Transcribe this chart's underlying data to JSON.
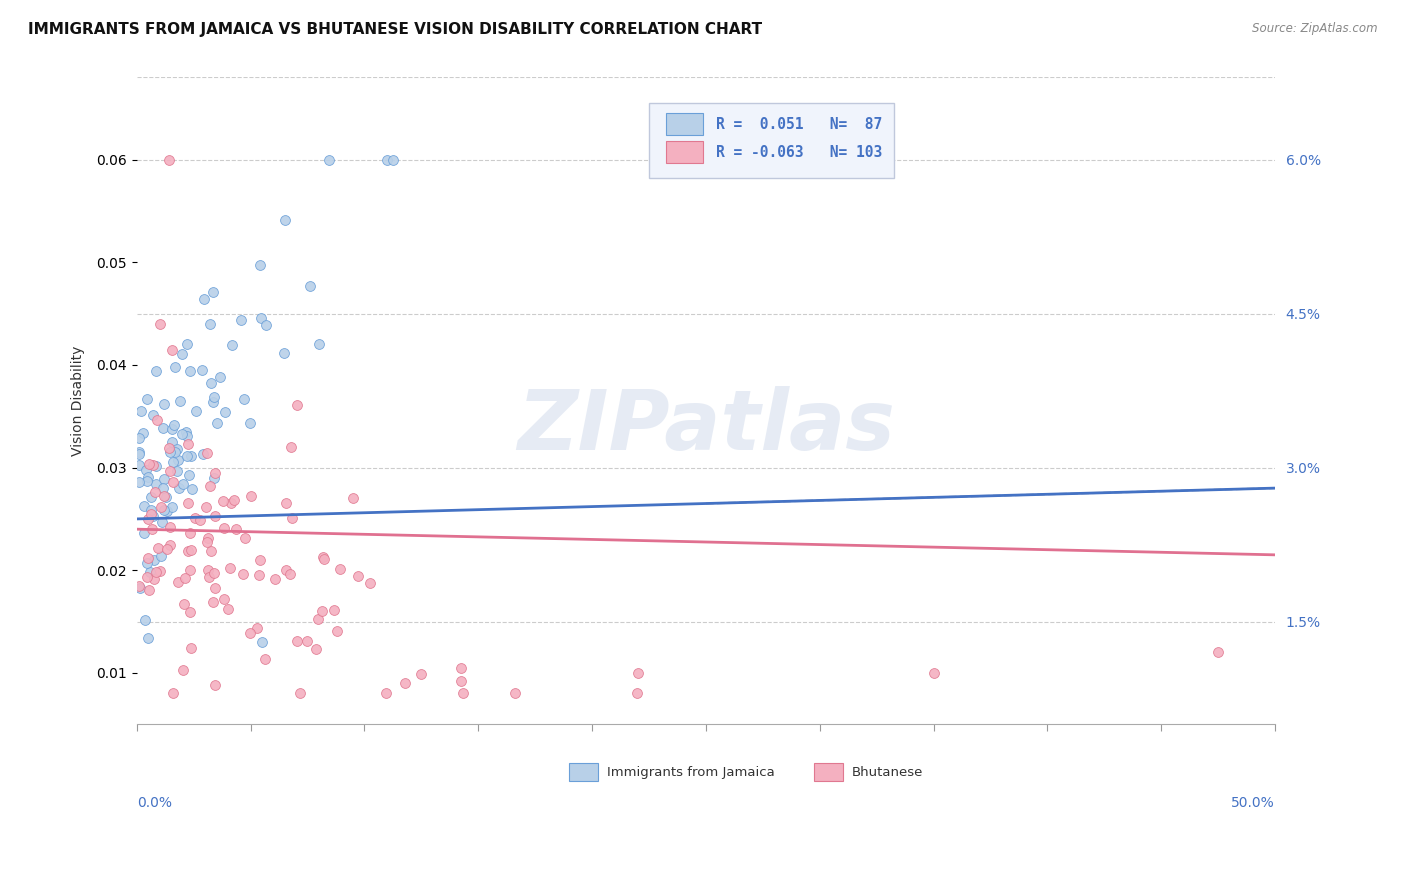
{
  "title": "IMMIGRANTS FROM JAMAICA VS BHUTANESE VISION DISABILITY CORRELATION CHART",
  "source": "Source: ZipAtlas.com",
  "ylabel": "Vision Disability",
  "yticks": [
    "1.5%",
    "3.0%",
    "4.5%",
    "6.0%"
  ],
  "ytick_vals": [
    0.015,
    0.03,
    0.045,
    0.06
  ],
  "xlim": [
    0.0,
    0.5
  ],
  "ylim": [
    0.005,
    0.068
  ],
  "R_jamaica": 0.051,
  "N_jamaica": 87,
  "R_bhutanese": -0.063,
  "N_bhutanese": 103,
  "color_jamaica_fill": "#b8d0e8",
  "color_jamaica_edge": "#6a9fd8",
  "color_bhutanese_fill": "#f4b0c0",
  "color_bhutanese_edge": "#e07890",
  "color_jamaica_line": "#4472c4",
  "color_bhutanese_line": "#e07090",
  "color_dashed": "#aaaaaa",
  "background_color": "#ffffff",
  "watermark": "ZIPatlas",
  "title_fontsize": 11,
  "axis_label_fontsize": 9,
  "tick_fontsize": 10
}
